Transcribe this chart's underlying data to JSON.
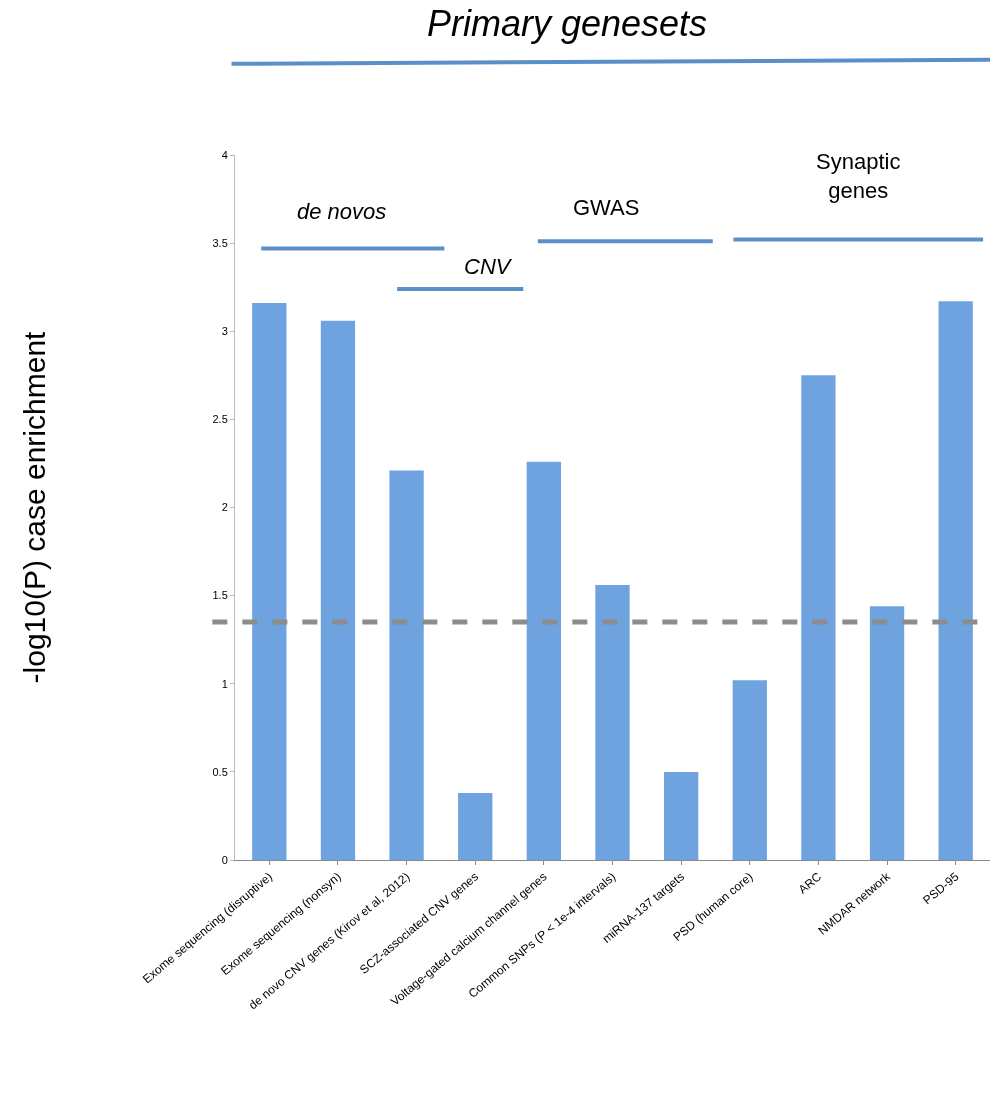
{
  "chart_data": {
    "type": "bar",
    "title": "Primary genesets",
    "ylabel": "-log10(P) case enrichment",
    "categories": [
      "Exome sequencing (disruptive)",
      "Exome sequencing (nonsyn)",
      "de novo CNV genes (Kirov et al, 2012)",
      "SCZ-associated CNV genes",
      "Voltage-gated calcium channel genes",
      "Common SNPs (P < 1e-4 intervals)",
      "miRNA-137 targets",
      "PSD (human core)",
      "ARC",
      "NMDAR network",
      "PSD-95"
    ],
    "values": [
      3.16,
      3.06,
      2.21,
      0.38,
      2.26,
      1.56,
      0.5,
      1.02,
      2.75,
      1.44,
      3.17
    ],
    "color": "#6fa3e0",
    "ylim": [
      0,
      4
    ],
    "yticks": [
      0,
      0.5,
      1,
      1.5,
      2,
      2.5,
      3,
      3.5,
      4
    ],
    "legend": false,
    "ref_lines": [
      {
        "axis": "y",
        "value": 1.35,
        "color": "#8c8c8c",
        "line_style": "dashed"
      }
    ],
    "annotations": [
      "de novos",
      "CNV",
      "GWAS",
      "Synaptic\ngenes"
    ]
  }
}
